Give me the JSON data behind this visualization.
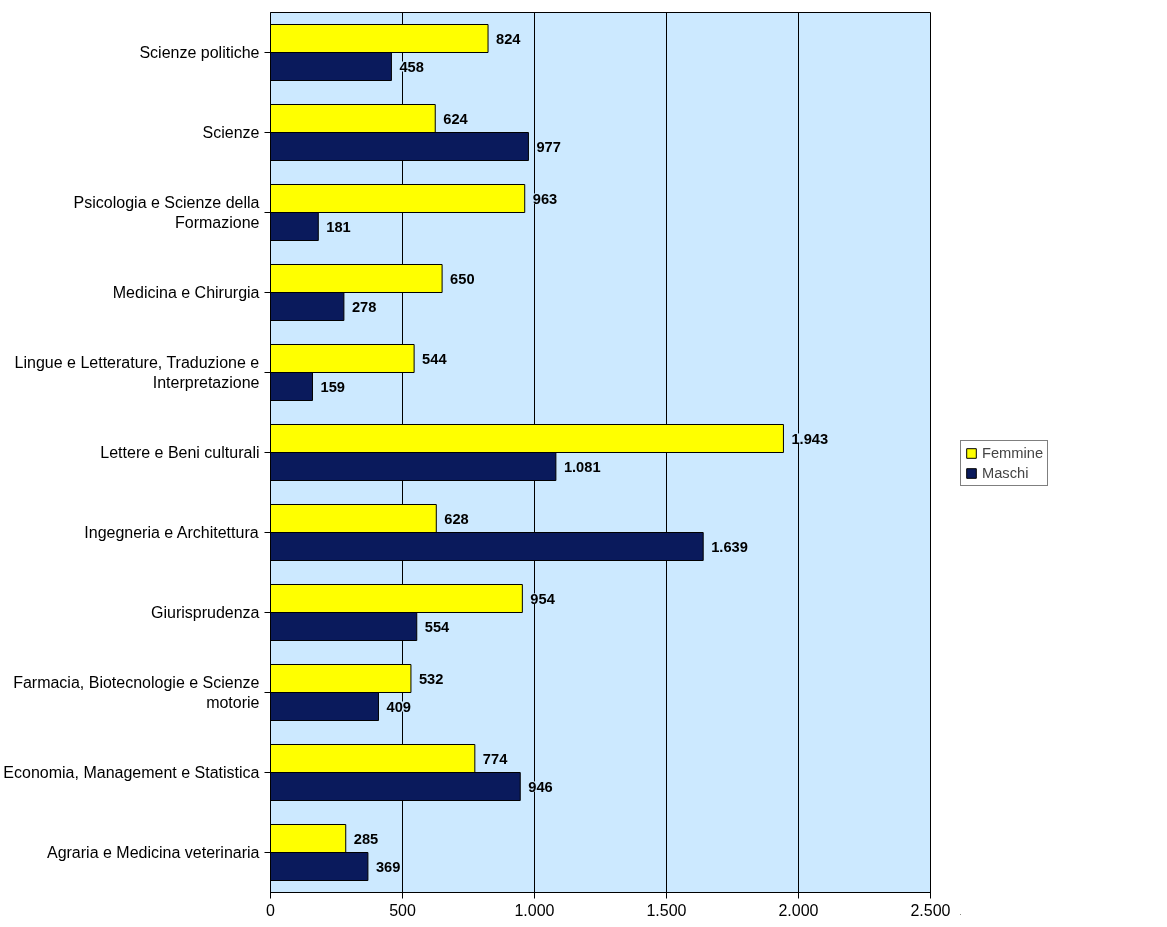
{
  "chart_data": {
    "type": "bar",
    "orientation": "horizontal",
    "categories": [
      "Scienze politiche",
      "Scienze",
      "Psicologia e Scienze della Formazione",
      "Medicina e Chirurgia",
      "Lingue e Letterature, Traduzione e Interpretazione",
      "Lettere e Beni culturali",
      "Ingegneria e Architettura",
      "Giurisprudenza",
      "Farmacia, Biotecnologie e Scienze motorie",
      "Economia, Management e Statistica",
      "Agraria e Medicina veterinaria"
    ],
    "series": [
      {
        "name": "Femmine",
        "color": "#ffff00",
        "values": [
          824,
          624,
          963,
          650,
          544,
          1943,
          628,
          954,
          532,
          774,
          285
        ],
        "value_labels": [
          "824",
          "624",
          "963",
          "650",
          "544",
          "1.943",
          "628",
          "954",
          "532",
          "774",
          "285"
        ]
      },
      {
        "name": "Maschi",
        "color": "#0a1a5c",
        "values": [
          458,
          977,
          181,
          278,
          159,
          1081,
          1639,
          554,
          409,
          946,
          369
        ],
        "value_labels": [
          "458",
          "977",
          "181",
          "278",
          "159",
          "1.081",
          "1.639",
          "554",
          "409",
          "946",
          "369"
        ]
      }
    ],
    "xlim": [
      0,
      2500
    ],
    "xticks": [
      0,
      500,
      {
        "value": 1000,
        "label": "1.000"
      },
      {
        "value": 1500,
        "label": "1.500"
      },
      {
        "value": 2000,
        "label": "2.000"
      },
      {
        "value": 2500,
        "label": "2.500"
      }
    ],
    "grid": "x",
    "legend": "right"
  }
}
